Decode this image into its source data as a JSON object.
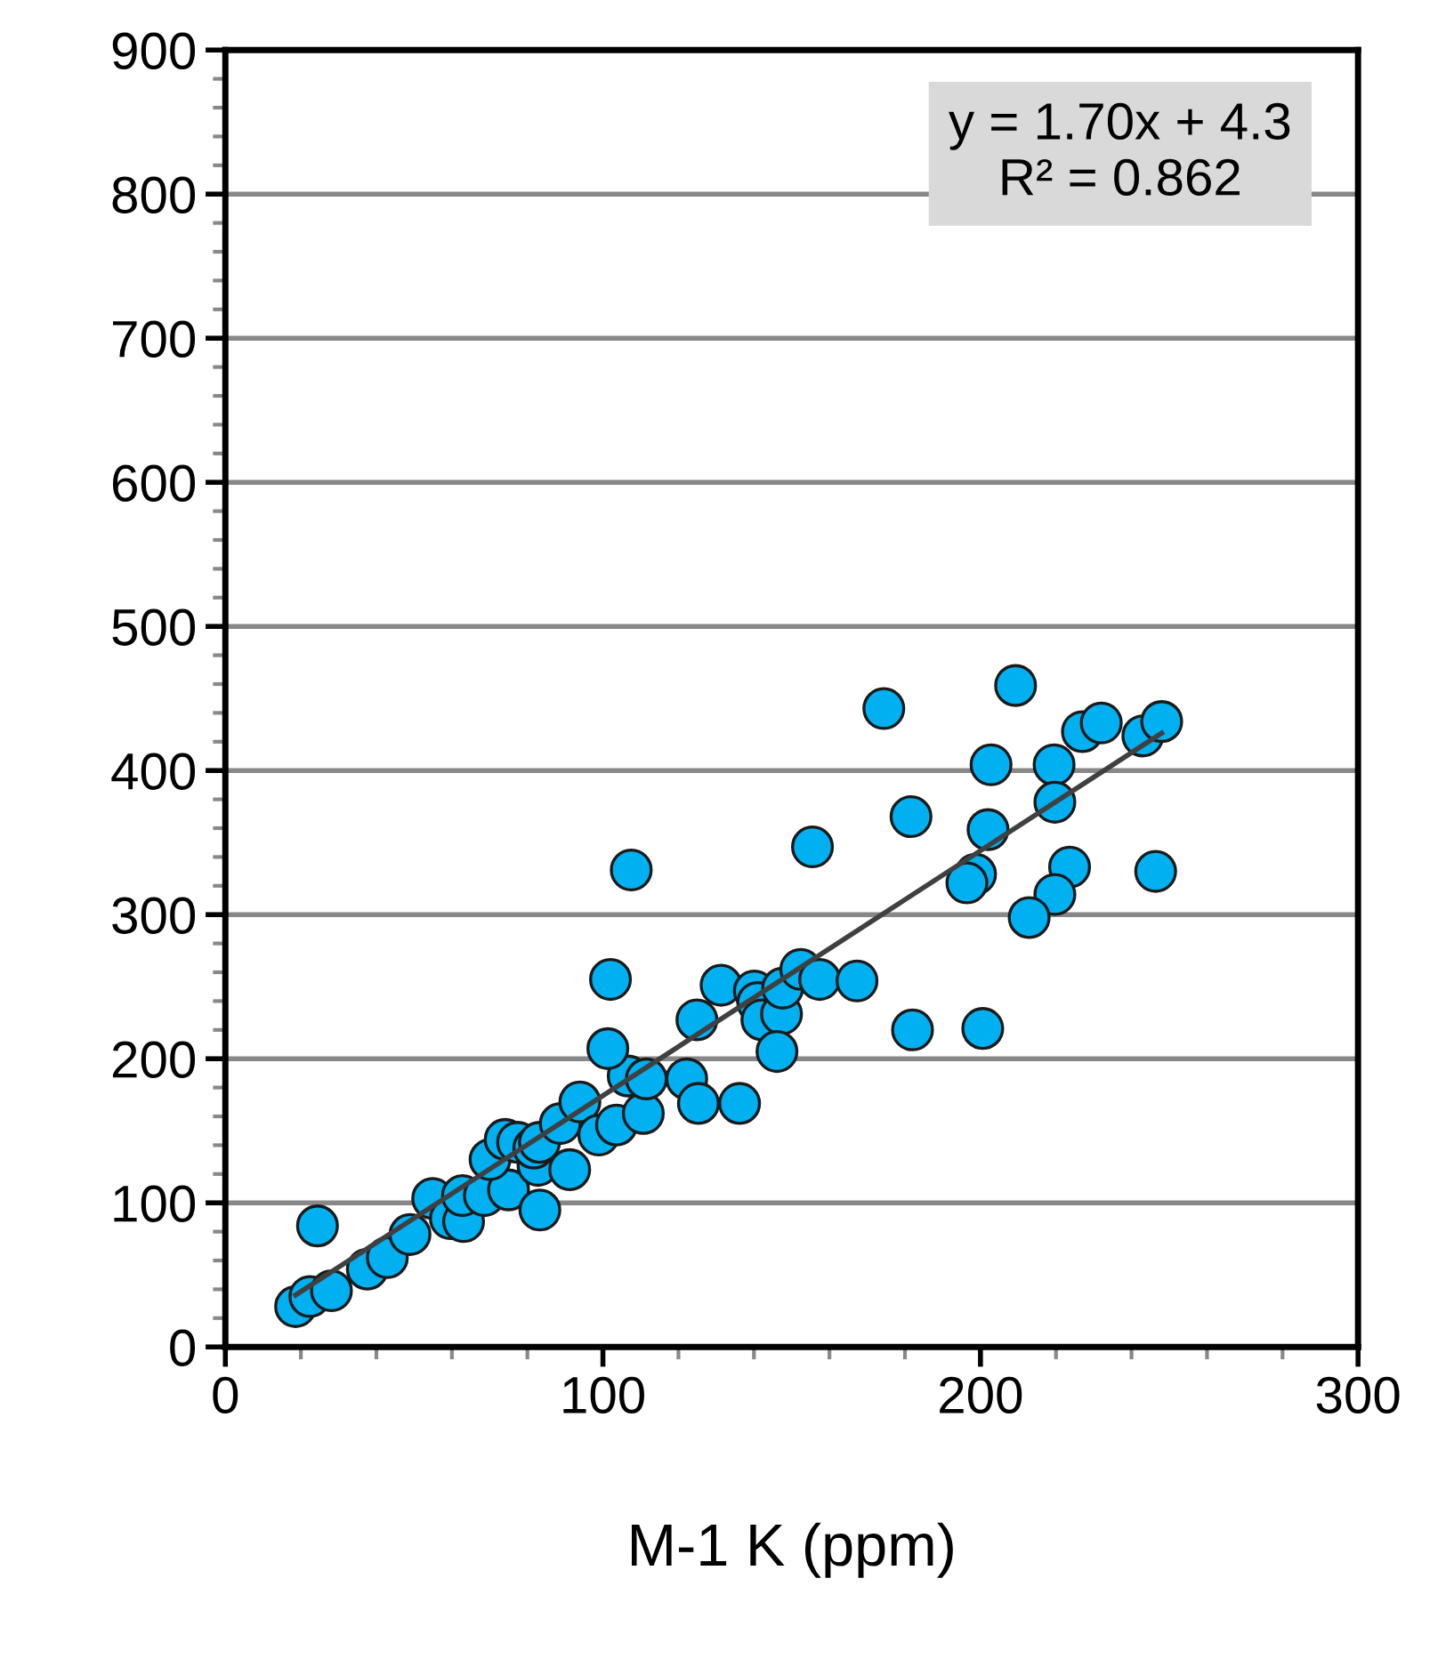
{
  "chart_data": {
    "type": "scatter",
    "xlabel": "M-1 K (ppm)",
    "annotations": [
      "y = 1.70x + 4.3\nR² = 0.862"
    ],
    "xlim": [
      0,
      300
    ],
    "xticks": [
      0,
      100,
      200,
      300
    ],
    "ylim": [
      0,
      900
    ],
    "yticks": [
      0,
      100,
      200,
      300,
      400,
      500,
      600,
      700,
      800,
      900
    ],
    "grid": "y",
    "legend": false,
    "marker": "circle",
    "series": [
      {
        "color": "#00b0f0",
        "x": [
          18.6,
          22.4,
          28.1,
          24.4,
          37.6,
          42.9,
          48.9,
          54.9,
          59.6,
          63.1,
          62.8,
          68.6,
          75,
          70.1,
          74.1,
          77.4,
          82.8,
          81.7,
          83.3,
          91.2,
          83.2,
          88.7,
          93.9,
          98.9,
          103.6,
          110.7,
          106.7,
          111.5,
          122.2,
          125.3,
          136.2,
          101.3,
          102,
          107.5,
          124.9,
          131.3,
          140.1,
          141,
          142.1,
          147.3,
          147.6,
          146.1,
          152.4,
          157.4,
          155.5,
          167.3,
          174.4,
          209.3,
          227,
          232,
          243,
          248,
          202.8,
          219.5,
          219.7,
          181.6,
          202,
          198.7,
          196.4,
          223.6,
          219.7,
          212.9,
          246.4,
          182,
          200.6
        ],
        "values": [
          28,
          35,
          39,
          84,
          54,
          62,
          78,
          103,
          89,
          87,
          105,
          105,
          109,
          130,
          144,
          142,
          126,
          138,
          95,
          123,
          142,
          155,
          170,
          147,
          154,
          162,
          188,
          186,
          186,
          169,
          169,
          207,
          255,
          331,
          227,
          251,
          247,
          239,
          227,
          231,
          249,
          205,
          262,
          255,
          347,
          254,
          443,
          459,
          427,
          433,
          424,
          434,
          404,
          404,
          378,
          368,
          359,
          328,
          322,
          333,
          314,
          298,
          330,
          220,
          221
        ]
      },
      {
        "type": "line",
        "color": "#404040",
        "marker": "none",
        "x": [
          18.6,
          248
        ],
        "values": [
          36,
          426
        ]
      }
    ]
  }
}
